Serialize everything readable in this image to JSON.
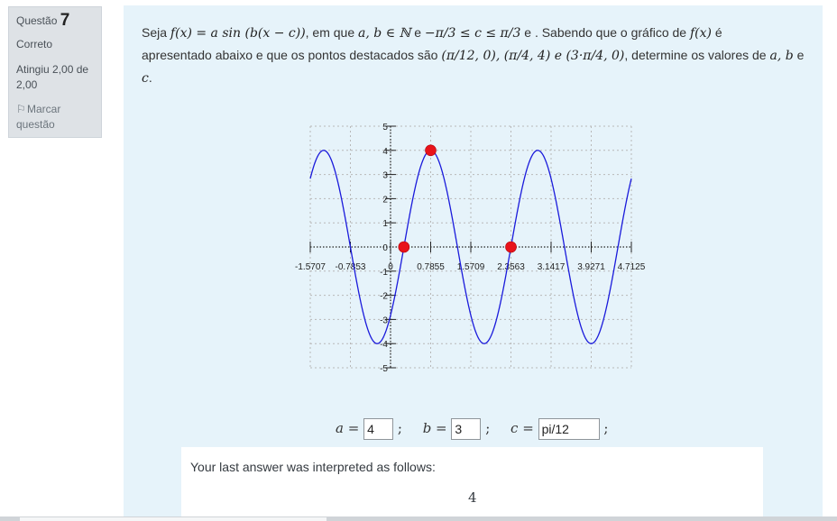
{
  "question_info": {
    "label": "Questão",
    "number": "7",
    "state": "Correto",
    "grade": "Atingiu 2,00 de 2,00",
    "flag_label": "Marcar questão"
  },
  "question_text": {
    "line1_a": "Seja",
    "line1_fx": "f(x) = a sin (b(x − c))",
    "line1_b": ", em que",
    "line1_set": "a, b ∈ ℕ",
    "line1_c": "e",
    "line1_ineq": "−π/3 ≤ c ≤ π/3",
    "line1_d": "e . Sabendo que o gráfico de",
    "line1_f": "f(x)",
    "line1_e": "é",
    "line2_a": "apresentado abaixo e que os pontos destacados são",
    "line2_points": "(π/12, 0), (π/4, 4) e (3·π/4, 0)",
    "line2_b": ", determine os valores de",
    "line2_vars": "a, b",
    "line2_c": "e",
    "line3_c": "c",
    "line3_dot": "."
  },
  "chart_data": {
    "type": "line",
    "function": "4*sin(3*(x - pi/12))",
    "xlim": [
      -1.5707,
      4.7125
    ],
    "ylim": [
      -5,
      5
    ],
    "x_ticks": [
      -1.5707,
      -0.7853,
      0,
      0.7855,
      1.5709,
      2.3563,
      3.1417,
      3.9271,
      4.7125
    ],
    "x_tick_labels": [
      "-1.5707",
      "-0.7853",
      "0",
      "0.7855",
      "1.5709",
      "2.3563",
      "3.1417",
      "3.9271",
      "4.7125"
    ],
    "y_ticks": [
      -5,
      -4,
      -3,
      -2,
      -1,
      1,
      2,
      3,
      4,
      5
    ],
    "y_tick_labels": [
      "-5",
      "-4",
      "-3",
      "-2",
      "-1",
      "1",
      "2",
      "3",
      "4",
      "5"
    ],
    "highlighted_points": [
      {
        "x": 0.2618,
        "y": 0
      },
      {
        "x": 0.7854,
        "y": 4
      },
      {
        "x": 2.3562,
        "y": 0
      }
    ],
    "grid": true,
    "line_color": "#1a1adb",
    "point_color": "#e8131a"
  },
  "answers": {
    "a_label": "a =",
    "a_value": "4",
    "b_label": "b =",
    "b_value": "3",
    "c_label": "c =",
    "c_value": "pi/12",
    "separator": ";"
  },
  "feedback": {
    "text": "Your last answer was interpreted as follows:",
    "value": "4"
  },
  "colors": {
    "content_bg": "#e6f3fa",
    "info_bg": "#dee2e6"
  }
}
